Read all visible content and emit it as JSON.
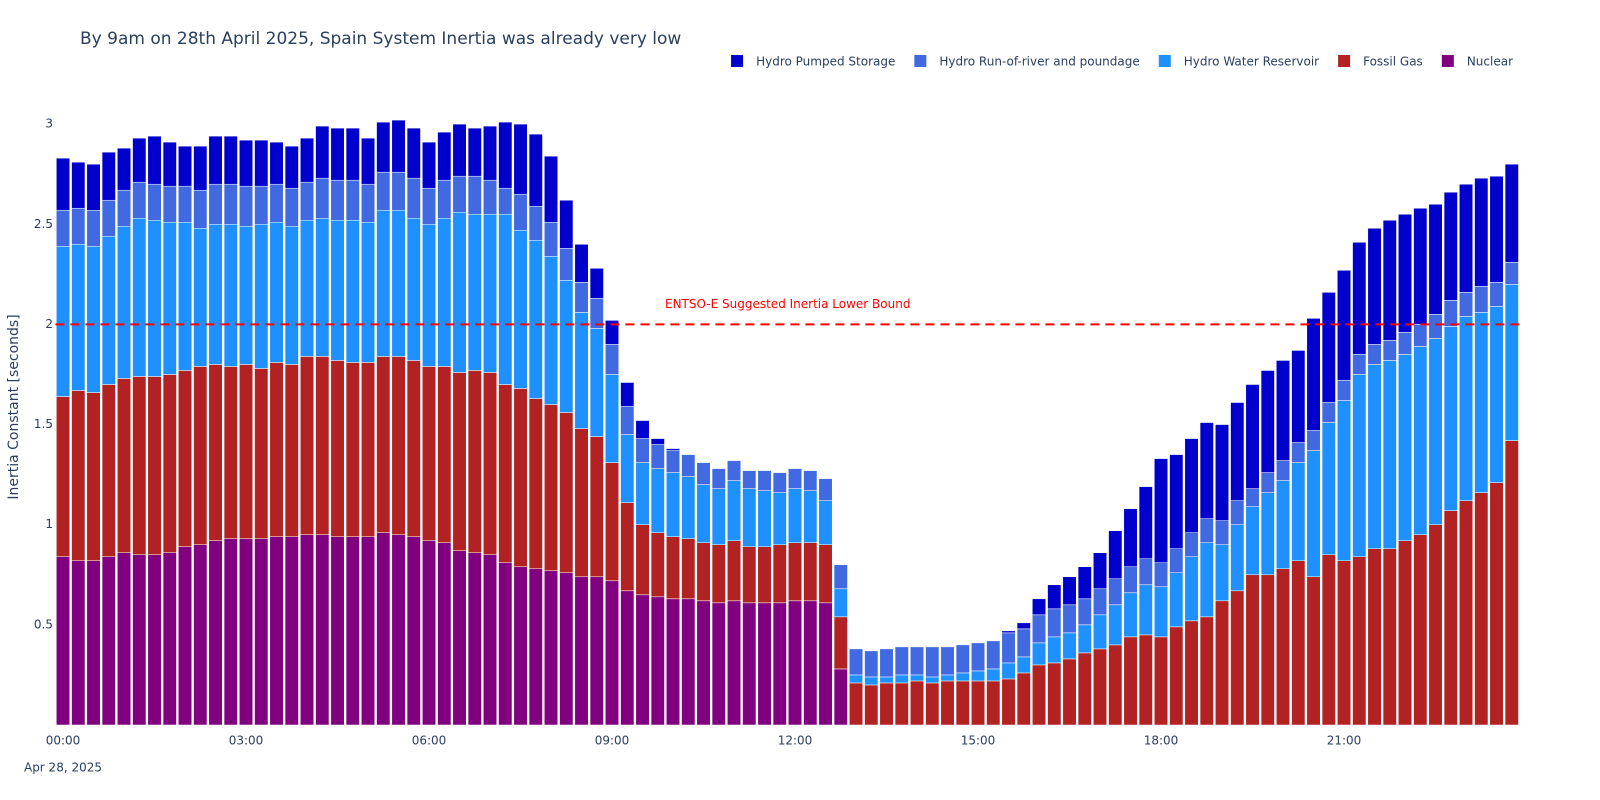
{
  "chart_data": {
    "type": "stacked_bar",
    "title": "By 9am on 28th April 2025, Spain System Inertia was already very low",
    "y_title": "Inertia Constant [seconds]",
    "x_sublabel": "Apr 28, 2025",
    "categories": [
      "00:00",
      null,
      null,
      null,
      null,
      null,
      null,
      null,
      null,
      null,
      null,
      null,
      "03:00",
      null,
      null,
      null,
      null,
      null,
      null,
      null,
      null,
      null,
      null,
      null,
      "06:00",
      null,
      null,
      null,
      null,
      null,
      null,
      null,
      null,
      null,
      null,
      null,
      "09:00",
      null,
      null,
      null,
      null,
      null,
      null,
      null,
      null,
      null,
      null,
      null,
      "12:00",
      null,
      null,
      null,
      null,
      null,
      null,
      null,
      null,
      null,
      null,
      null,
      "15:00",
      null,
      null,
      null,
      null,
      null,
      null,
      null,
      null,
      null,
      null,
      null,
      "18:00",
      null,
      null,
      null,
      null,
      null,
      null,
      null,
      null,
      null,
      null,
      null,
      "21:00",
      null,
      null,
      null,
      null,
      null,
      null,
      null,
      null,
      null,
      null,
      null
    ],
    "ylim": [
      0,
      3.1
    ],
    "yticks": [
      0.5,
      1,
      1.5,
      2,
      2.5,
      3
    ],
    "grid": false,
    "legend": "top-right",
    "threshold": {
      "value": 2,
      "label": "ENTSO-E Suggested Inertia Lower Bound",
      "color": "red"
    },
    "series": [
      {
        "name": "Hydro Pumped Storage",
        "color": "#0000cd",
        "values": [
          0.26,
          0.23,
          0.23,
          0.24,
          0.21,
          0.22,
          0.24,
          0.22,
          0.2,
          0.22,
          0.24,
          0.24,
          0.23,
          0.23,
          0.21,
          0.21,
          0.22,
          0.26,
          0.26,
          0.26,
          0.23,
          0.25,
          0.26,
          0.25,
          0.23,
          0.24,
          0.26,
          0.24,
          0.27,
          0.33,
          0.35,
          0.36,
          0.33,
          0.24,
          0.19,
          0.15,
          0.12,
          0.12,
          0.09,
          0.03,
          0.01,
          0,
          0,
          0,
          0,
          0,
          0,
          0,
          0,
          0,
          0,
          0,
          0,
          0,
          0,
          0,
          0,
          0,
          0,
          0,
          0,
          0,
          0.01,
          0.03,
          0.08,
          0.12,
          0.14,
          0.16,
          0.18,
          0.24,
          0.29,
          0.36,
          0.52,
          0.47,
          0.47,
          0.48,
          0.48,
          0.49,
          0.52,
          0.51,
          0.5,
          0.46,
          0.56,
          0.55,
          0.55,
          0.56,
          0.58,
          0.6,
          0.59,
          0.58,
          0.55,
          0.54,
          0.54,
          0.54,
          0.53,
          0.49
        ]
      },
      {
        "name": "Hydro Run-of-river and poundage",
        "color": "#4169e1",
        "values": [
          0.18,
          0.18,
          0.18,
          0.18,
          0.18,
          0.18,
          0.18,
          0.18,
          0.18,
          0.19,
          0.2,
          0.2,
          0.2,
          0.19,
          0.19,
          0.19,
          0.19,
          0.2,
          0.2,
          0.2,
          0.19,
          0.19,
          0.19,
          0.2,
          0.18,
          0.19,
          0.18,
          0.19,
          0.17,
          0.13,
          0.18,
          0.17,
          0.17,
          0.16,
          0.15,
          0.15,
          0.15,
          0.14,
          0.12,
          0.12,
          0.11,
          0.11,
          0.11,
          0.1,
          0.1,
          0.09,
          0.1,
          0.1,
          0.1,
          0.1,
          0.11,
          0.12,
          0.13,
          0.13,
          0.14,
          0.14,
          0.14,
          0.15,
          0.14,
          0.14,
          0.14,
          0.14,
          0.15,
          0.14,
          0.14,
          0.14,
          0.14,
          0.13,
          0.13,
          0.13,
          0.13,
          0.13,
          0.12,
          0.12,
          0.12,
          0.12,
          0.12,
          0.12,
          0.09,
          0.1,
          0.1,
          0.1,
          0.1,
          0.1,
          0.1,
          0.1,
          0.1,
          0.1,
          0.11,
          0.11,
          0.12,
          0.13,
          0.12,
          0.13,
          0.12,
          0.11
        ]
      },
      {
        "name": "Hydro Water Reservoir",
        "color": "#1e90ff",
        "values": [
          0.75,
          0.73,
          0.73,
          0.74,
          0.76,
          0.79,
          0.78,
          0.76,
          0.74,
          0.69,
          0.7,
          0.71,
          0.69,
          0.72,
          0.7,
          0.69,
          0.68,
          0.69,
          0.7,
          0.71,
          0.7,
          0.73,
          0.73,
          0.71,
          0.71,
          0.74,
          0.8,
          0.78,
          0.79,
          0.85,
          0.79,
          0.79,
          0.74,
          0.66,
          0.58,
          0.54,
          0.44,
          0.34,
          0.31,
          0.32,
          0.32,
          0.31,
          0.29,
          0.28,
          0.3,
          0.29,
          0.28,
          0.26,
          0.27,
          0.26,
          0.22,
          0.14,
          0.04,
          0.04,
          0.03,
          0.04,
          0.03,
          0.03,
          0.03,
          0.04,
          0.05,
          0.06,
          0.08,
          0.08,
          0.11,
          0.13,
          0.13,
          0.14,
          0.17,
          0.2,
          0.22,
          0.25,
          0.25,
          0.27,
          0.32,
          0.37,
          0.28,
          0.33,
          0.34,
          0.41,
          0.44,
          0.49,
          0.63,
          0.66,
          0.8,
          0.91,
          0.92,
          0.94,
          0.93,
          0.94,
          0.93,
          0.92,
          0.92,
          0.9,
          0.88,
          0.78
        ]
      },
      {
        "name": "Fossil Gas",
        "color": "#b22222",
        "values": [
          0.8,
          0.85,
          0.84,
          0.86,
          0.87,
          0.89,
          0.89,
          0.89,
          0.88,
          0.89,
          0.88,
          0.86,
          0.87,
          0.85,
          0.87,
          0.86,
          0.89,
          0.89,
          0.88,
          0.87,
          0.87,
          0.88,
          0.89,
          0.88,
          0.87,
          0.88,
          0.89,
          0.91,
          0.91,
          0.89,
          0.89,
          0.85,
          0.83,
          0.8,
          0.74,
          0.7,
          0.59,
          0.44,
          0.35,
          0.32,
          0.31,
          0.3,
          0.29,
          0.29,
          0.3,
          0.28,
          0.28,
          0.29,
          0.29,
          0.29,
          0.29,
          0.26,
          0.21,
          0.2,
          0.21,
          0.21,
          0.22,
          0.21,
          0.22,
          0.22,
          0.22,
          0.22,
          0.23,
          0.26,
          0.3,
          0.31,
          0.33,
          0.36,
          0.38,
          0.4,
          0.44,
          0.45,
          0.44,
          0.49,
          0.52,
          0.54,
          0.62,
          0.67,
          0.75,
          0.75,
          0.78,
          0.82,
          0.74,
          0.85,
          0.82,
          0.84,
          0.88,
          0.88,
          0.92,
          0.95,
          1.0,
          1.07,
          1.12,
          1.16,
          1.21,
          1.42
        ]
      },
      {
        "name": "Nuclear",
        "color": "#800080",
        "values": [
          0.84,
          0.82,
          0.82,
          0.84,
          0.86,
          0.85,
          0.85,
          0.86,
          0.89,
          0.9,
          0.92,
          0.93,
          0.93,
          0.93,
          0.94,
          0.94,
          0.95,
          0.95,
          0.94,
          0.94,
          0.94,
          0.96,
          0.95,
          0.94,
          0.92,
          0.91,
          0.87,
          0.86,
          0.85,
          0.81,
          0.79,
          0.78,
          0.77,
          0.76,
          0.74,
          0.74,
          0.72,
          0.67,
          0.65,
          0.64,
          0.63,
          0.63,
          0.62,
          0.61,
          0.62,
          0.61,
          0.61,
          0.61,
          0.62,
          0.62,
          0.61,
          0.28,
          0,
          0,
          0,
          0,
          0,
          0,
          0,
          0,
          0,
          0,
          0,
          0,
          0,
          0,
          0,
          0,
          0,
          0,
          0,
          0,
          0,
          0,
          0,
          0,
          0,
          0,
          0,
          0,
          0,
          0,
          0,
          0,
          0,
          0,
          0,
          0,
          0,
          0,
          0,
          0,
          0,
          0,
          0,
          0
        ]
      }
    ]
  }
}
